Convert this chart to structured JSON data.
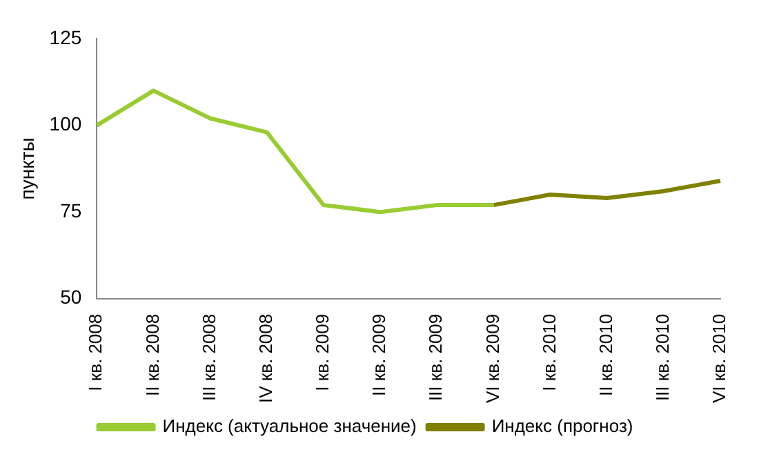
{
  "chart_data": {
    "type": "line",
    "ylabel": "пункты",
    "categories": [
      "I кв. 2008",
      "II кв. 2008",
      "III кв. 2008",
      "IV кв. 2008",
      "I кв. 2009",
      "II кв. 2009",
      "III кв. 2009",
      "VI кв. 2009",
      "I кв. 2010",
      "II кв. 2010",
      "III кв. 2010",
      "VI кв. 2010"
    ],
    "series": [
      {
        "name": "Индекс (актуальное значение)",
        "color": "#99cc33",
        "values": [
          100,
          110,
          102,
          98,
          77,
          75,
          77,
          77,
          null,
          null,
          null,
          null
        ]
      },
      {
        "name": "Индекс (прогноз)",
        "color": "#808000",
        "values": [
          null,
          null,
          null,
          null,
          null,
          null,
          null,
          77,
          80,
          79,
          81,
          84
        ]
      }
    ],
    "ylim": [
      50,
      125
    ],
    "yticks": [
      50,
      75,
      100,
      125
    ],
    "grid": false,
    "legend": "bottom",
    "marker": "none",
    "line_style": "solid"
  }
}
